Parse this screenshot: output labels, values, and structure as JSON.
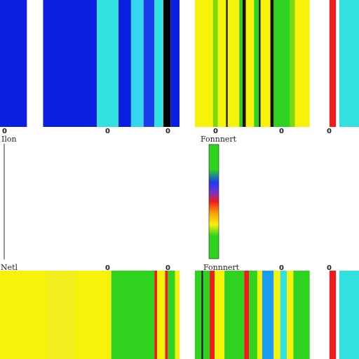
{
  "chart_data": {
    "type": "heatmap",
    "title": "",
    "panels": [
      {
        "name": "top-left",
        "label": "",
        "ticks": [
          "0",
          "0",
          "0"
        ],
        "stripes": [
          {
            "from": 0,
            "to": 0.15,
            "color": "#0a1fe0"
          },
          {
            "from": 0.15,
            "to": 0.24,
            "color": "#ffffff"
          },
          {
            "from": 0.24,
            "to": 0.54,
            "color": "#0a1fe0"
          },
          {
            "from": 0.54,
            "to": 0.66,
            "color": "#33e0e0"
          },
          {
            "from": 0.66,
            "to": 0.73,
            "color": "#0a1fe0"
          },
          {
            "from": 0.73,
            "to": 0.8,
            "color": "#33d6ee"
          },
          {
            "from": 0.8,
            "to": 0.86,
            "color": "#1a3cf0"
          },
          {
            "from": 0.86,
            "to": 0.91,
            "color": "#33e0e0"
          },
          {
            "from": 0.91,
            "to": 0.95,
            "color": "#000000"
          },
          {
            "from": 0.95,
            "to": 1.0,
            "color": "#0a1fe0"
          }
        ]
      },
      {
        "name": "top-right",
        "label": "Fonnnert",
        "ticks": [
          "0",
          "0",
          "0"
        ],
        "stripes": [
          {
            "from": 0,
            "to": 0.11,
            "color": "#f6f20a"
          },
          {
            "from": 0.11,
            "to": 0.14,
            "color": "#7fd80a"
          },
          {
            "from": 0.14,
            "to": 0.19,
            "color": "#f6f20a"
          },
          {
            "from": 0.19,
            "to": 0.2,
            "color": "#111111"
          },
          {
            "from": 0.2,
            "to": 0.27,
            "color": "#f6f20a"
          },
          {
            "from": 0.27,
            "to": 0.29,
            "color": "#2fd21e"
          },
          {
            "from": 0.29,
            "to": 0.31,
            "color": "#111111"
          },
          {
            "from": 0.31,
            "to": 0.36,
            "color": "#f6f20a"
          },
          {
            "from": 0.36,
            "to": 0.39,
            "color": "#2fd21e"
          },
          {
            "from": 0.39,
            "to": 0.4,
            "color": "#111111"
          },
          {
            "from": 0.4,
            "to": 0.46,
            "color": "#f6f20a"
          },
          {
            "from": 0.46,
            "to": 0.48,
            "color": "#111111"
          },
          {
            "from": 0.48,
            "to": 0.58,
            "color": "#2fd21e"
          },
          {
            "from": 0.58,
            "to": 0.61,
            "color": "#7fd80a"
          },
          {
            "from": 0.61,
            "to": 0.7,
            "color": "#f6f20a"
          },
          {
            "from": 0.7,
            "to": 0.82,
            "color": "#ffffff"
          },
          {
            "from": 0.82,
            "to": 0.86,
            "color": "#ee1c1c"
          },
          {
            "from": 0.86,
            "to": 0.88,
            "color": "#ffffff"
          },
          {
            "from": 0.88,
            "to": 1.0,
            "color": "#33e0e0"
          }
        ]
      },
      {
        "name": "bottom-left",
        "label": "Netl",
        "ticks": [
          "0",
          "0",
          "0"
        ],
        "stripes": [
          {
            "from": 0,
            "to": 0.26,
            "color": "#f6f20a"
          },
          {
            "from": 0.26,
            "to": 0.42,
            "color": "#f3ef1e"
          },
          {
            "from": 0.42,
            "to": 0.62,
            "color": "#f6f20a"
          },
          {
            "from": 0.62,
            "to": 0.86,
            "color": "#2fd21e"
          },
          {
            "from": 0.86,
            "to": 0.875,
            "color": "#ee1c1c"
          },
          {
            "from": 0.875,
            "to": 0.92,
            "color": "#f6f20a"
          },
          {
            "from": 0.92,
            "to": 0.935,
            "color": "#ee1c1c"
          },
          {
            "from": 0.935,
            "to": 0.975,
            "color": "#2fd21e"
          },
          {
            "from": 0.975,
            "to": 1.0,
            "color": "#f6f20a"
          }
        ]
      },
      {
        "name": "bottom-right",
        "label": "Fonnnert",
        "ticks": [
          "0",
          "0",
          "0"
        ],
        "stripes": [
          {
            "from": 0,
            "to": 0.04,
            "color": "#2fd21e"
          },
          {
            "from": 0.04,
            "to": 0.05,
            "color": "#111111"
          },
          {
            "from": 0.05,
            "to": 0.09,
            "color": "#2fd21e"
          },
          {
            "from": 0.09,
            "to": 0.12,
            "color": "#ee1c1c"
          },
          {
            "from": 0.12,
            "to": 0.18,
            "color": "#f6f20a"
          },
          {
            "from": 0.18,
            "to": 0.3,
            "color": "#2fd21e"
          },
          {
            "from": 0.3,
            "to": 0.33,
            "color": "#ee1c1c"
          },
          {
            "from": 0.33,
            "to": 0.38,
            "color": "#2fd21e"
          },
          {
            "from": 0.38,
            "to": 0.41,
            "color": "#f6f20a"
          },
          {
            "from": 0.41,
            "to": 0.48,
            "color": "#1a9cf0"
          },
          {
            "from": 0.48,
            "to": 0.52,
            "color": "#f6f20a"
          },
          {
            "from": 0.52,
            "to": 0.56,
            "color": "#33e0e0"
          },
          {
            "from": 0.56,
            "to": 0.6,
            "color": "#f6f20a"
          },
          {
            "from": 0.6,
            "to": 0.7,
            "color": "#2fd21e"
          },
          {
            "from": 0.7,
            "to": 0.82,
            "color": "#ffffff"
          },
          {
            "from": 0.82,
            "to": 0.86,
            "color": "#ee1c1c"
          },
          {
            "from": 0.86,
            "to": 0.88,
            "color": "#ffffff"
          },
          {
            "from": 0.88,
            "to": 1.0,
            "color": "#33e0e0"
          }
        ]
      }
    ],
    "colorbar": {
      "name": "colorbar",
      "stops": [
        {
          "offset": 0,
          "color": "#2fd21e"
        },
        {
          "offset": 0.22,
          "color": "#2fd21e"
        },
        {
          "offset": 0.33,
          "color": "#1a3cf0"
        },
        {
          "offset": 0.42,
          "color": "#7a2fc8"
        },
        {
          "offset": 0.5,
          "color": "#ee1c1c"
        },
        {
          "offset": 0.6,
          "color": "#f6a00a"
        },
        {
          "offset": 0.7,
          "color": "#f6f20a"
        },
        {
          "offset": 0.8,
          "color": "#2fd21e"
        },
        {
          "offset": 1,
          "color": "#2fd21e"
        }
      ]
    },
    "left_label": "Ilon",
    "grid": false,
    "legend": "none"
  }
}
